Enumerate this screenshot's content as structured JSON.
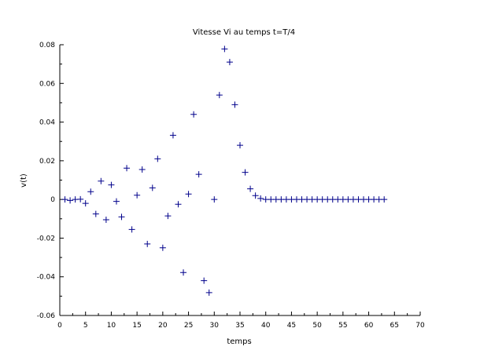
{
  "chart_data": {
    "type": "scatter",
    "title": "Vitesse Vi au temps t=T/4",
    "xlabel": "temps",
    "ylabel": "v(t)",
    "xlim": [
      0,
      70
    ],
    "ylim": [
      -0.06,
      0.08
    ],
    "xticks": [
      "0",
      "5",
      "10",
      "15",
      "20",
      "25",
      "30",
      "35",
      "40",
      "45",
      "50",
      "55",
      "60",
      "65",
      "70"
    ],
    "yticks": [
      "-0.06",
      "-0.04",
      "-0.02",
      "0",
      "0.02",
      "0.04",
      "0.06",
      "0.08"
    ],
    "grid": false,
    "marker": "+",
    "color": "#00008b",
    "x": [
      1,
      2,
      3,
      4,
      5,
      6,
      7,
      8,
      9,
      10,
      11,
      12,
      13,
      14,
      15,
      16,
      17,
      18,
      19,
      20,
      21,
      22,
      23,
      24,
      25,
      26,
      27,
      28,
      29,
      30,
      31,
      32,
      33,
      34,
      35,
      36,
      37,
      38,
      39,
      40,
      41,
      42,
      43,
      44,
      45,
      46,
      47,
      48,
      49,
      50,
      51,
      52,
      53,
      54,
      55,
      56,
      57,
      58,
      59,
      60,
      61,
      62,
      63
    ],
    "y": [
      0,
      -0.0005,
      0,
      0.0001,
      -0.002,
      0.004,
      -0.0075,
      0.0095,
      -0.0105,
      0.0075,
      -0.001,
      -0.009,
      0.0162,
      -0.0155,
      0.0022,
      0.0155,
      -0.023,
      0.006,
      0.021,
      -0.025,
      -0.0085,
      0.0332,
      -0.0025,
      -0.0378,
      0.0028,
      0.044,
      0.013,
      -0.042,
      -0.0482,
      0,
      0.054,
      0.0778,
      0.071,
      0.049,
      0.028,
      0.014,
      0.0055,
      0.002,
      0.0005,
      0,
      0,
      0,
      0,
      0,
      0,
      0,
      0,
      0,
      0,
      0,
      0,
      0,
      0,
      0,
      0,
      0,
      0,
      0,
      0,
      0,
      0,
      0,
      0
    ]
  }
}
